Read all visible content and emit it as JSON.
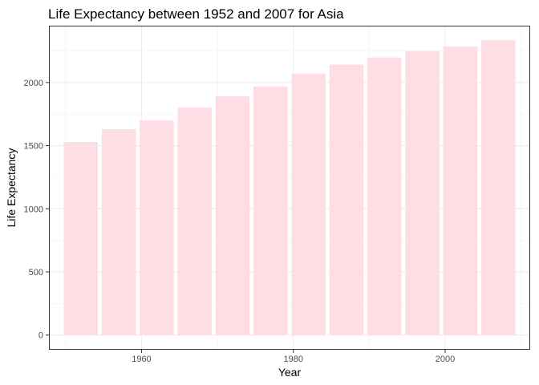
{
  "chart_data": {
    "type": "bar",
    "title": "Life Expectancy between 1952 and 2007 for Asia",
    "xlabel": "Year",
    "ylabel": "Life Expectancy",
    "x": [
      1952,
      1957,
      1962,
      1967,
      1972,
      1977,
      1982,
      1987,
      1992,
      1997,
      2002,
      2007
    ],
    "values": [
      1529,
      1630,
      1699,
      1801,
      1890,
      1969,
      2070,
      2142,
      2198,
      2248,
      2286,
      2334
    ],
    "xlim": [
      1947.8,
      2011.2
    ],
    "ylim": [
      -116,
      2450
    ],
    "xticks": [
      1960,
      1980,
      2000
    ],
    "yticks": [
      0,
      500,
      1000,
      1500,
      2000
    ],
    "bar_width_years": 4.5,
    "bar_color": "#ffdde4",
    "grid": true,
    "legend": "none"
  }
}
